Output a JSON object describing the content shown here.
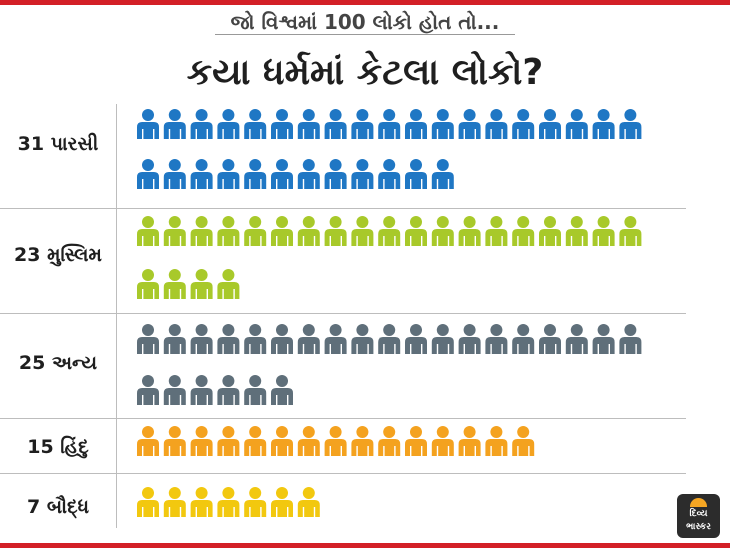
{
  "header": {
    "subtitle": "જો વિશ્વમાં 100 લોકો હોત તો...",
    "title": "કયા ધર્મમાં કેટલા લોકો?"
  },
  "colors": {
    "accent_red": "#d32027",
    "divider": "#bdbdbd",
    "parsi": "#1f77c4",
    "muslim": "#a8c92a",
    "other": "#5f6f7a",
    "hindu": "#f4a21f",
    "buddhist": "#f2c80f"
  },
  "logo": {
    "line1": "દિવ્ય",
    "line2": "ભાસ્કર"
  },
  "chart_data": {
    "type": "pictograph",
    "title": "કયા ધર્મમાં કેટલા લોકો?",
    "subtitle": "જો વિશ્વમાં 100 લોકો હોત તો...",
    "unit": "people per 100",
    "categories": [
      "પારસી",
      "મુસ્લિમ",
      "અન્ય",
      "હિંદુ",
      "બૌદ્ધ"
    ],
    "values": [
      31,
      23,
      25,
      15,
      7
    ],
    "labels": [
      "31 પારસી",
      "23 મુસ્લિમ",
      "25 અન્ય",
      "15 હિંદુ",
      "7 બૌદ્ધ"
    ],
    "colors": [
      "#1f77c4",
      "#a8c92a",
      "#5f6f7a",
      "#f4a21f",
      "#f2c80f"
    ]
  }
}
